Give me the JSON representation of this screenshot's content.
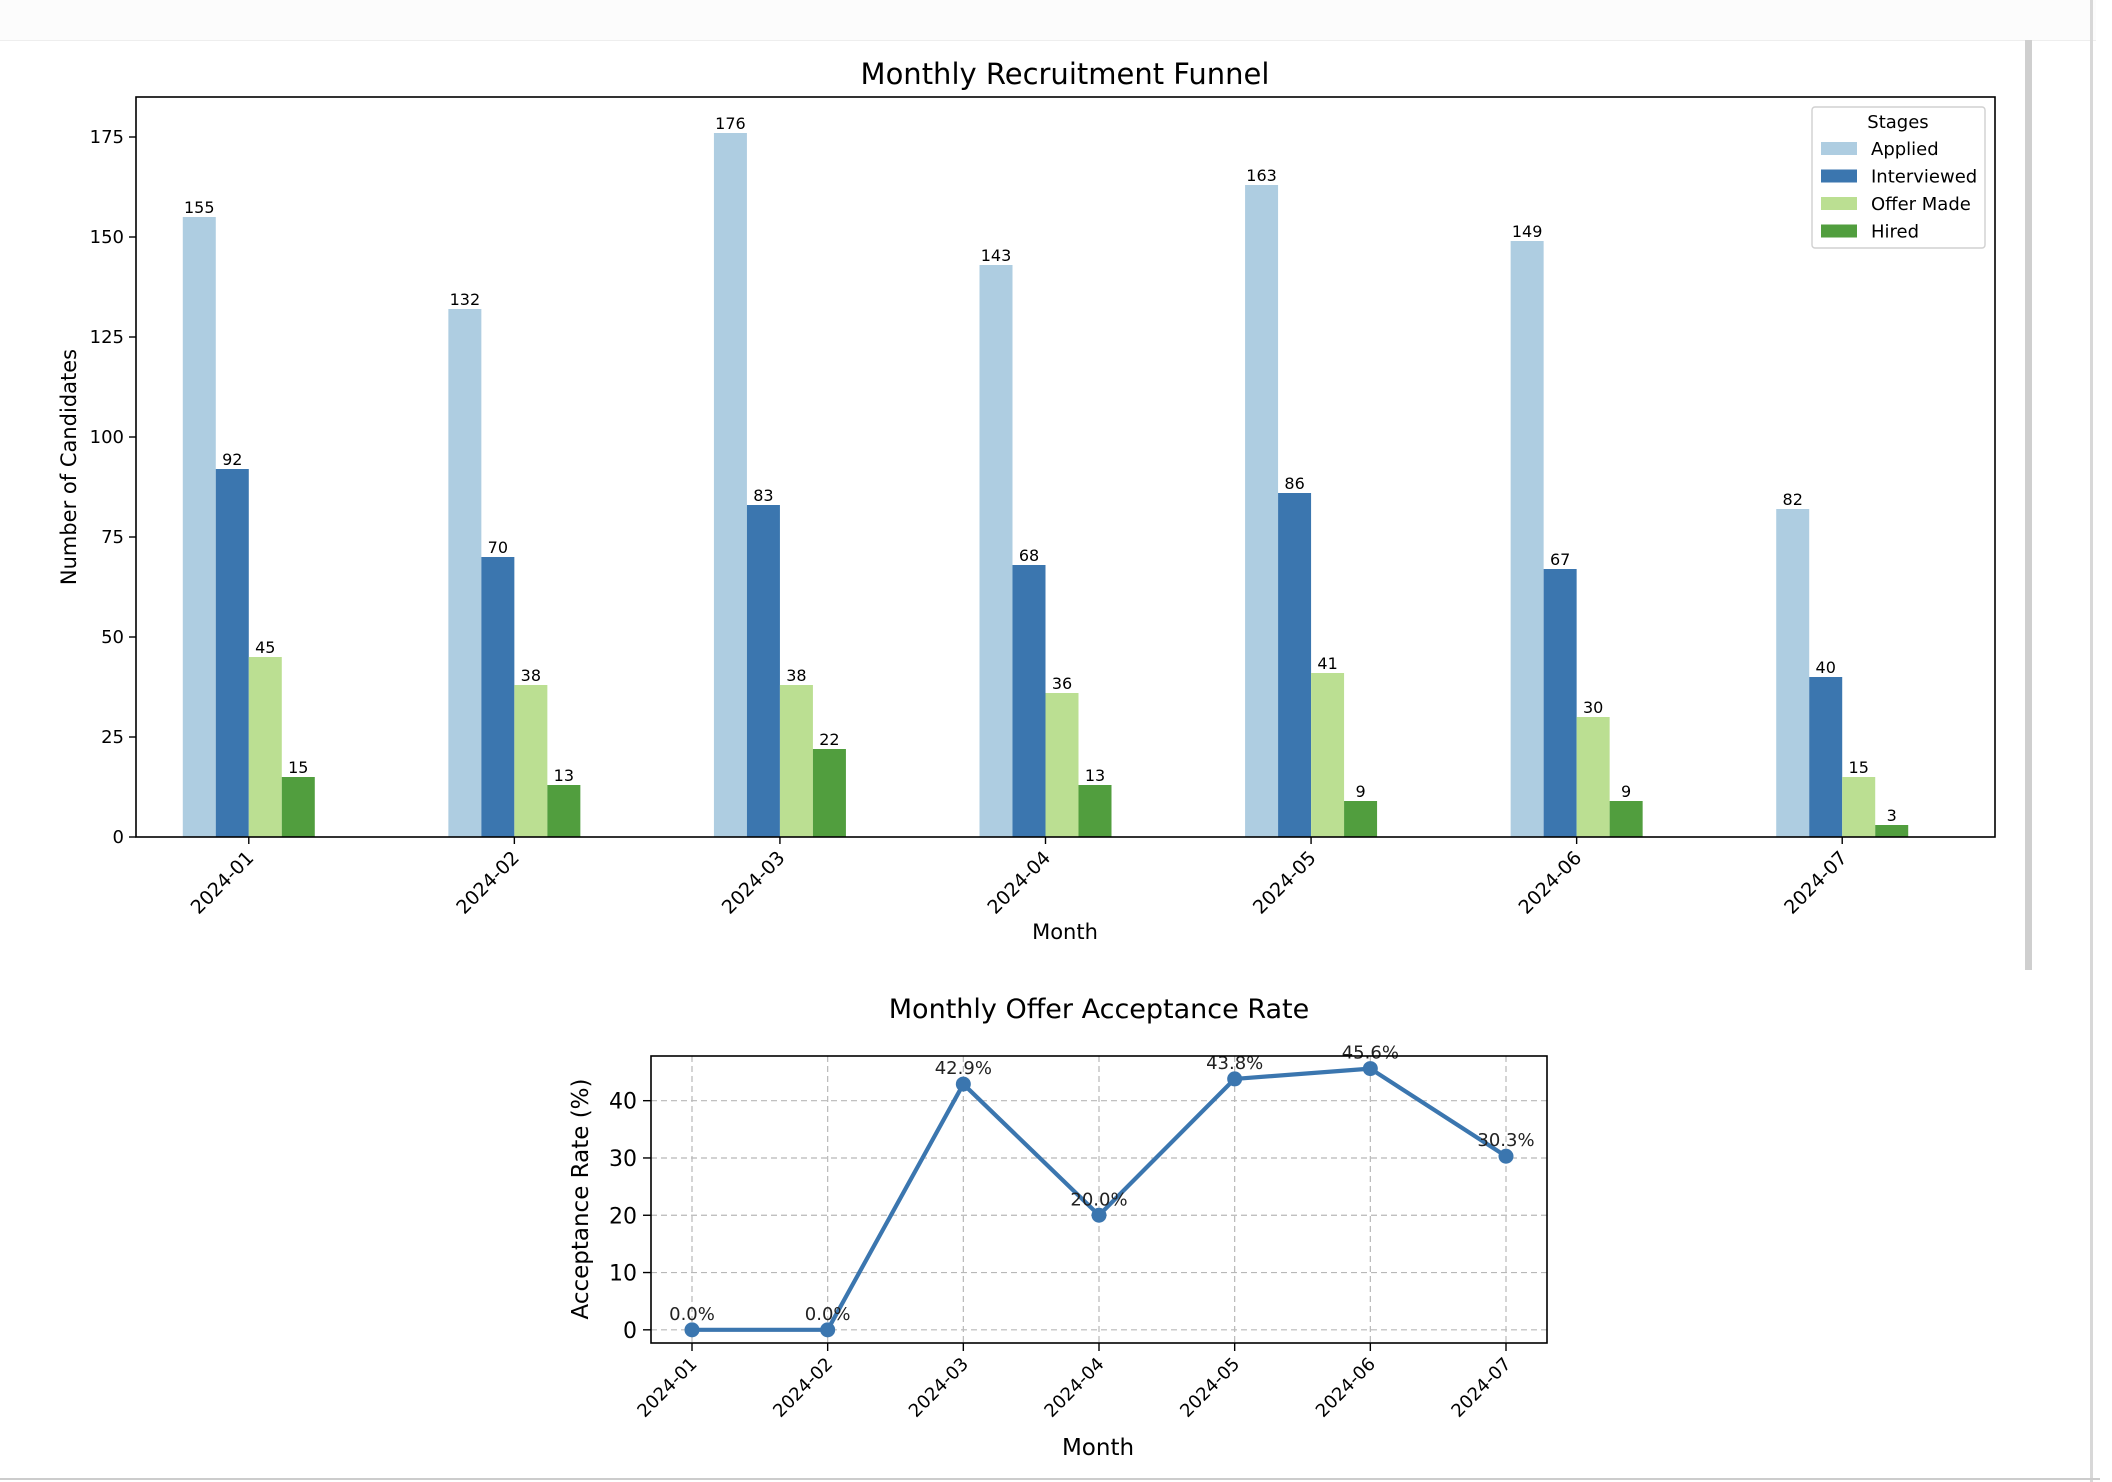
{
  "chart_data": [
    {
      "type": "bar",
      "title": "Monthly Recruitment Funnel",
      "xlabel": "Month",
      "ylabel": "Number of Candidates",
      "ylim": [
        0,
        185
      ],
      "yticks": [
        0,
        25,
        50,
        75,
        100,
        125,
        150,
        175
      ],
      "categories": [
        "2024-01",
        "2024-02",
        "2024-03",
        "2024-04",
        "2024-05",
        "2024-06",
        "2024-07"
      ],
      "legend_title": "Stages",
      "legend_position": "top-right",
      "grid": false,
      "series": [
        {
          "name": "Applied",
          "color": "#aecde1",
          "values": [
            155,
            132,
            176,
            143,
            163,
            149,
            82
          ]
        },
        {
          "name": "Interviewed",
          "color": "#3b76af",
          "values": [
            92,
            70,
            83,
            68,
            86,
            67,
            40
          ]
        },
        {
          "name": "Offer Made",
          "color": "#bbdf92",
          "values": [
            45,
            38,
            38,
            36,
            41,
            30,
            15
          ]
        },
        {
          "name": "Hired",
          "color": "#519e3e",
          "values": [
            15,
            13,
            22,
            13,
            9,
            9,
            3
          ]
        }
      ]
    },
    {
      "type": "line",
      "title": "Monthly Offer Acceptance Rate",
      "xlabel": "Month",
      "ylabel": "Acceptance Rate (%)",
      "ylim": [
        -2.3,
        47.8
      ],
      "yticks": [
        0,
        10,
        20,
        30,
        40
      ],
      "categories": [
        "2024-01",
        "2024-02",
        "2024-03",
        "2024-04",
        "2024-05",
        "2024-06",
        "2024-07"
      ],
      "grid": true,
      "series": [
        {
          "color": "#3b76af",
          "values": [
            0.0,
            0.0,
            42.9,
            20.0,
            43.8,
            45.6,
            30.3
          ]
        }
      ],
      "point_labels": [
        "0.0%",
        "0.0%",
        "42.9%",
        "20.0%",
        "43.8%",
        "45.6%",
        "30.3%"
      ]
    }
  ]
}
